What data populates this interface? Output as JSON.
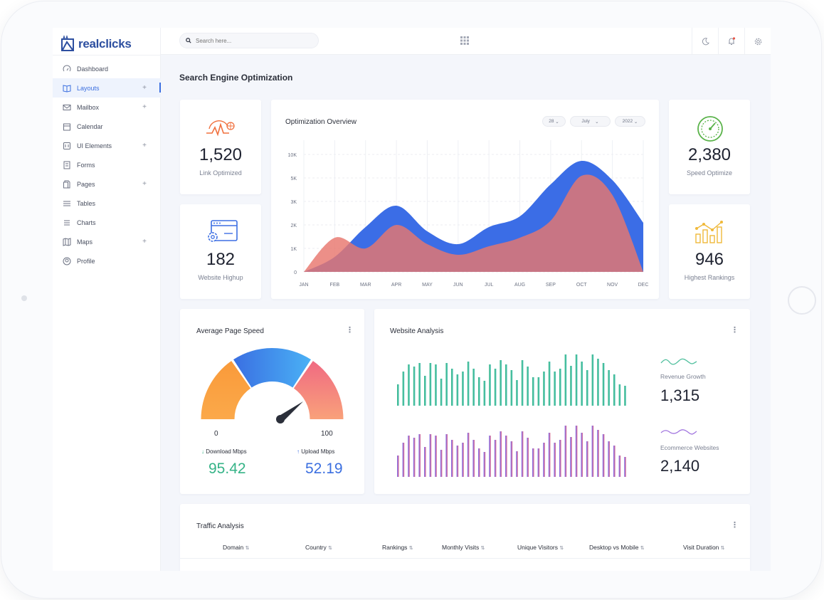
{
  "brand": {
    "name": "realclicks",
    "accent": "#2d4fa0"
  },
  "search": {
    "placeholder": "Search here..."
  },
  "sidebar": {
    "items": [
      {
        "label": "Dashboard",
        "icon": "dashboard-icon",
        "plus": ""
      },
      {
        "label": "Layouts",
        "icon": "book-icon",
        "plus": "+"
      },
      {
        "label": "Mailbox",
        "icon": "mail-icon",
        "plus": "+"
      },
      {
        "label": "Calendar",
        "icon": "calendar-icon",
        "plus": ""
      },
      {
        "label": "UI Elements",
        "icon": "ui-icon",
        "plus": "+"
      },
      {
        "label": "Forms",
        "icon": "forms-icon",
        "plus": ""
      },
      {
        "label": "Pages",
        "icon": "pages-icon",
        "plus": "+"
      },
      {
        "label": "Tables",
        "icon": "tables-icon",
        "plus": ""
      },
      {
        "label": "Charts",
        "icon": "charts-icon",
        "plus": ""
      },
      {
        "label": "Maps",
        "icon": "map-icon",
        "plus": "+"
      },
      {
        "label": "Profile",
        "icon": "profile-icon",
        "plus": ""
      }
    ]
  },
  "page": {
    "title": "Search Engine Optimization"
  },
  "stats": {
    "link_optimized": {
      "value": "1,520",
      "label": "Link Optimized"
    },
    "website_highup": {
      "value": "182",
      "label": "Website Highup"
    },
    "speed_optimize": {
      "value": "2,380",
      "label": "Speed Optimize"
    },
    "highest_rankings": {
      "value": "946",
      "label": "Highest Rankings"
    }
  },
  "overview": {
    "title": "Optimization Overview",
    "filters": {
      "day": "28",
      "month": "July",
      "year": "2022"
    }
  },
  "speed": {
    "title": "Average Page Speed",
    "min": "0",
    "max": "100",
    "download_label": "Download Mbps",
    "download_value": "95.42",
    "upload_label": "Upload Mbps",
    "upload_value": "52.19",
    "download_color": "#35b387",
    "upload_color": "#3b6fe0"
  },
  "analysis": {
    "title": "Website Analysis",
    "revenue_label": "Revenue Growth",
    "revenue_value": "1,315",
    "ecommerce_label": "Ecommerce Websites",
    "ecommerce_value": "2,140"
  },
  "traffic": {
    "title": "Traffic Analysis",
    "columns": [
      "Domain",
      "Country",
      "Rankings",
      "Monthly Visits",
      "Unique Visitors",
      "Desktop vs Mobile",
      "Visit Duration"
    ]
  },
  "chart_data": {
    "type": "area",
    "x": [
      "JAN",
      "FEB",
      "MAR",
      "APR",
      "MAY",
      "JUN",
      "JUL",
      "AUG",
      "SEP",
      "OCT",
      "NOV",
      "DEC"
    ],
    "y_ticks": [
      "0",
      "1K",
      "2K",
      "3K",
      "5K",
      "10K"
    ],
    "series": [
      {
        "color": "#3b6de6",
        "values": [
          0,
          0.7,
          2.1,
          3.1,
          1.9,
          1.3,
          2.1,
          2.6,
          4.1,
          5.2,
          4.3,
          2.3
        ]
      },
      {
        "color": "#e8766e",
        "values": [
          0,
          1.6,
          1.1,
          2.2,
          1.3,
          0.8,
          1.2,
          1.6,
          2.4,
          4.5,
          3.6,
          0
        ]
      }
    ],
    "grid": true
  }
}
